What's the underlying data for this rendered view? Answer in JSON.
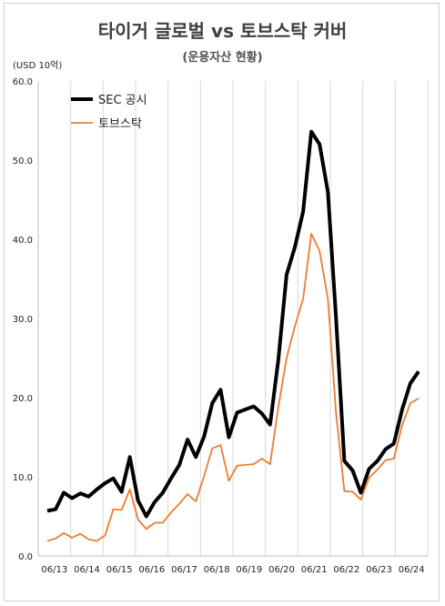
{
  "chart_data": {
    "type": "line",
    "title": "타이거 글로벌 vs 토브스탁 커버",
    "subtitle": "(운용자산 현황)",
    "unit_label": "(USD 10억)",
    "ylim": [
      0,
      60
    ],
    "yticks": [
      "0.0",
      "10.0",
      "20.0",
      "30.0",
      "40.0",
      "50.0",
      "60.0"
    ],
    "xtick_labels": [
      "06/13",
      "06/14",
      "06/15",
      "06/16",
      "06/17",
      "06/18",
      "06/19",
      "06/20",
      "06/21",
      "06/22",
      "06/23",
      "06/24"
    ],
    "x_count": 46,
    "grid": "vertical",
    "legend_position": "top-left",
    "series": [
      {
        "name": "SEC 공시",
        "color": "#000000",
        "values": [
          5.7,
          5.9,
          8.0,
          7.3,
          7.9,
          7.5,
          8.4,
          9.2,
          9.8,
          8.1,
          12.5,
          7.0,
          5.0,
          6.8,
          8.0,
          9.8,
          11.5,
          14.7,
          12.5,
          15.1,
          19.3,
          21.0,
          15.0,
          18.1,
          18.5,
          18.9,
          18.0,
          16.6,
          24.8,
          35.5,
          39.0,
          43.5,
          53.6,
          52.0,
          46.0,
          30.0,
          12.0,
          10.8,
          8.0,
          11.0,
          12.0,
          13.5,
          14.2,
          18.5,
          21.8,
          23.3
        ]
      },
      {
        "name": "토브스탁",
        "color": "#ed7d31",
        "values": [
          1.9,
          2.2,
          2.9,
          2.3,
          2.8,
          2.1,
          1.9,
          2.6,
          5.9,
          5.8,
          8.4,
          4.6,
          3.4,
          4.2,
          4.2,
          5.5,
          6.6,
          7.8,
          6.9,
          10.1,
          13.6,
          14.0,
          9.5,
          11.4,
          11.5,
          11.6,
          12.3,
          11.6,
          18.8,
          25.0,
          29.0,
          32.5,
          40.7,
          38.5,
          32.5,
          18.0,
          8.2,
          8.1,
          7.1,
          9.9,
          10.9,
          12.1,
          12.3,
          16.5,
          19.3,
          19.9
        ]
      }
    ]
  }
}
